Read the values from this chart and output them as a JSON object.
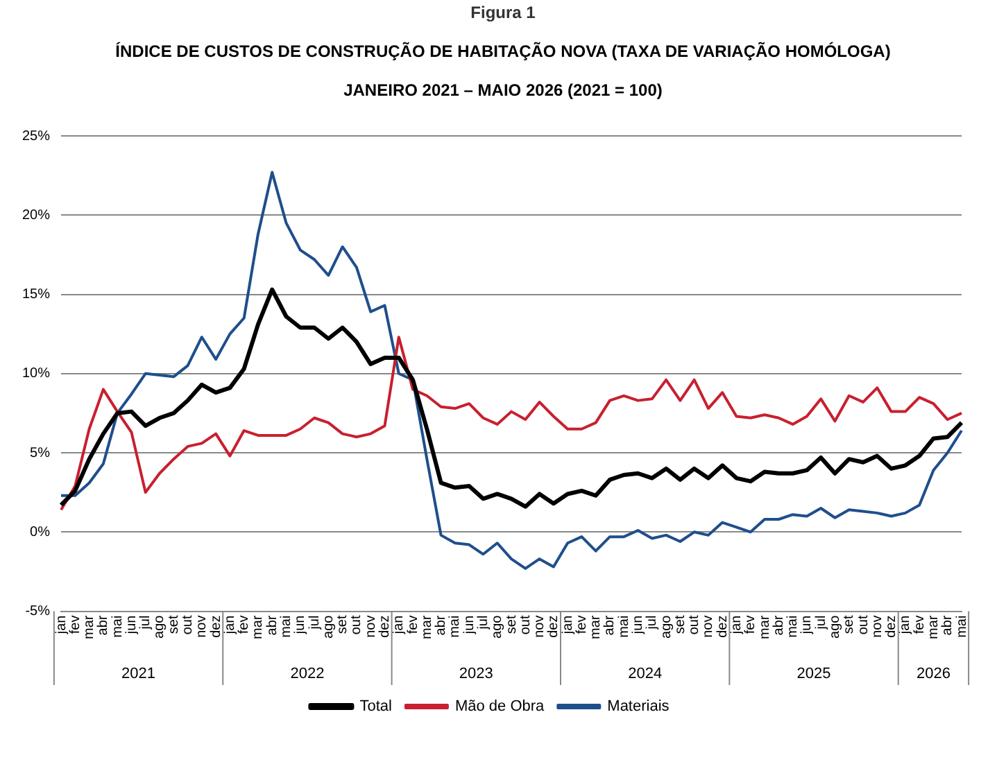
{
  "chart_data": {
    "type": "line",
    "title": "ÍNDICE DE CUSTOS DE CONSTRUÇÃO DE HABITAÇÃO NOVA (TAXA DE VARIAÇÃO HOMÓLOGA)",
    "subtitle": "JANEIRO 2021 – MAIO 2026 (2021 = 100)",
    "annotations": [
      "Figura 1",
      "2021",
      "2022",
      "2023",
      "2024",
      "2025",
      "2026"
    ],
    "categories": [
      "jan",
      "fev",
      "mar",
      "abr",
      "mai",
      "jun",
      "jul",
      "ago",
      "set",
      "out",
      "nov",
      "dez",
      "jan",
      "fev",
      "mar",
      "abr",
      "mai",
      "jun",
      "jul",
      "ago",
      "set",
      "out",
      "nov",
      "dez",
      "jan",
      "fev",
      "mar",
      "abr",
      "mai",
      "jun",
      "jul",
      "ago",
      "set",
      "out",
      "nov",
      "dez",
      "jan",
      "fev",
      "mar",
      "abr",
      "mai",
      "jun",
      "jul",
      "ago",
      "set",
      "out",
      "nov",
      "dez",
      "jan",
      "fev",
      "mar",
      "abr",
      "mai",
      "jun",
      "jul",
      "ago",
      "set",
      "out",
      "nov",
      "dez",
      "jan",
      "fev",
      "mar",
      "abr",
      "mai"
    ],
    "series": [
      {
        "name": "Total",
        "color": "#000000",
        "values": [
          1.7,
          2.6,
          4.6,
          6.2,
          7.5,
          7.6,
          6.7,
          7.2,
          7.5,
          8.3,
          9.3,
          8.8,
          9.1,
          10.3,
          13.1,
          15.3,
          13.6,
          12.9,
          12.9,
          12.2,
          12.9,
          12.0,
          10.6,
          11.0,
          11.0,
          9.6,
          6.5,
          3.1,
          2.8,
          2.9,
          2.1,
          2.4,
          2.1,
          1.6,
          2.4,
          1.8,
          2.4,
          2.6,
          2.3,
          3.3,
          3.6,
          3.7,
          3.4,
          4.0,
          3.3,
          4.0,
          3.4,
          4.2,
          3.4,
          3.2,
          3.8,
          3.7,
          3.7,
          3.9,
          4.7,
          3.7,
          4.6,
          4.4,
          4.8,
          4.0,
          4.2,
          4.8,
          5.9,
          6.0,
          6.9
        ]
      },
      {
        "name": "Mão de Obra",
        "color": "#c8202f",
        "values": [
          1.4,
          2.9,
          6.5,
          9.0,
          7.6,
          6.3,
          2.5,
          3.7,
          4.6,
          5.4,
          5.6,
          6.2,
          4.8,
          6.4,
          6.1,
          6.1,
          6.1,
          6.5,
          7.2,
          6.9,
          6.2,
          6.0,
          6.2,
          6.7,
          12.3,
          9.0,
          8.6,
          7.9,
          7.8,
          8.1,
          7.2,
          6.8,
          7.6,
          7.1,
          8.2,
          7.3,
          6.5,
          6.5,
          6.9,
          8.3,
          8.6,
          8.3,
          8.4,
          9.6,
          8.3,
          9.6,
          7.8,
          8.8,
          7.3,
          7.2,
          7.4,
          7.2,
          6.8,
          7.3,
          8.4,
          7.0,
          8.6,
          8.2,
          9.1,
          7.6,
          7.6,
          8.5,
          8.1,
          7.1,
          7.5
        ]
      },
      {
        "name": "Materiais",
        "color": "#1f4e8c",
        "values": [
          2.3,
          2.3,
          3.1,
          4.3,
          7.5,
          8.7,
          10.0,
          9.9,
          9.8,
          10.5,
          12.3,
          10.9,
          12.5,
          13.5,
          18.8,
          22.7,
          19.5,
          17.8,
          17.2,
          16.2,
          18.0,
          16.7,
          13.9,
          14.3,
          10.0,
          9.6,
          4.6,
          -0.2,
          -0.7,
          -0.8,
          -1.4,
          -0.7,
          -1.7,
          -2.3,
          -1.7,
          -2.2,
          -0.7,
          -0.3,
          -1.2,
          -0.3,
          -0.3,
          0.1,
          -0.4,
          -0.2,
          -0.6,
          0.0,
          -0.2,
          0.6,
          0.3,
          0.0,
          0.8,
          0.8,
          1.1,
          1.0,
          1.5,
          0.9,
          1.4,
          1.3,
          1.2,
          1.0,
          1.2,
          1.7,
          3.9,
          5.0,
          6.4
        ]
      }
    ],
    "ylim": [
      -5,
      25
    ],
    "yticks": [
      {
        "value": -5,
        "label": "-5%"
      },
      {
        "value": 0,
        "label": "0%"
      },
      {
        "value": 5,
        "label": "5%"
      },
      {
        "value": 10,
        "label": "10%"
      },
      {
        "value": 15,
        "label": "15%"
      },
      {
        "value": 20,
        "label": "20%"
      },
      {
        "value": 25,
        "label": "25%"
      }
    ],
    "grid": "y",
    "legend": "bottom",
    "marker": "none",
    "line_style": "solid"
  }
}
